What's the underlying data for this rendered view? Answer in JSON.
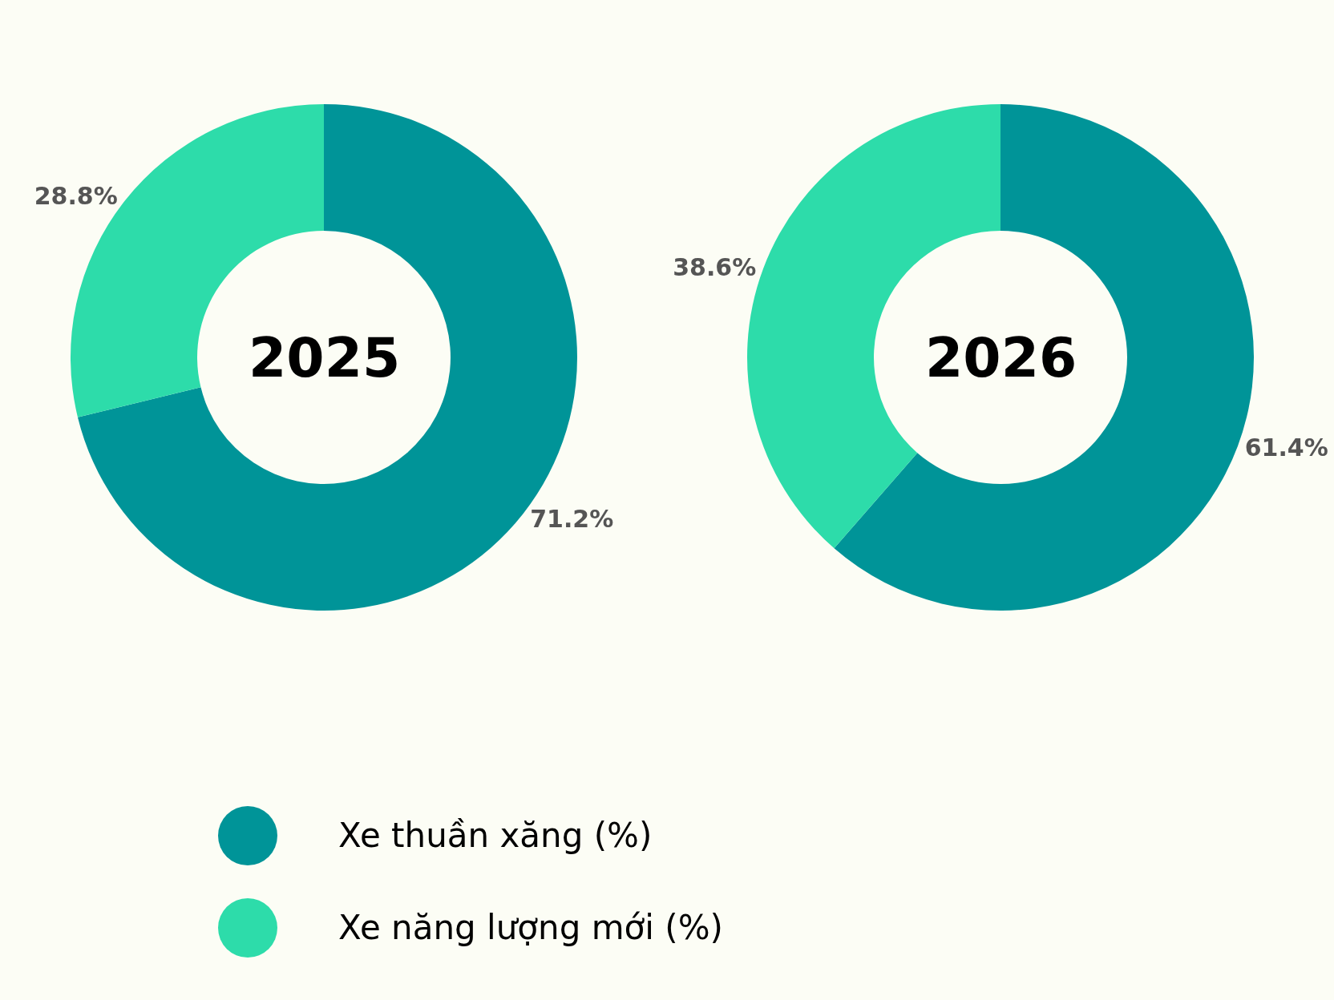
{
  "chart_data": {
    "type": "donut",
    "categories": [
      "Xe thuần xăng (%)",
      "Xe năng lượng mới (%)"
    ],
    "colors": [
      "#009498",
      "#2ddcaa"
    ],
    "legend": "bottom",
    "series": [
      {
        "name": "2025",
        "values": [
          71.2,
          28.8
        ],
        "value_labels": [
          "71.2%",
          "28.8%"
        ]
      },
      {
        "name": "2026",
        "values": [
          61.4,
          38.6
        ],
        "value_labels": [
          "61.4%",
          "38.6%"
        ]
      }
    ]
  }
}
